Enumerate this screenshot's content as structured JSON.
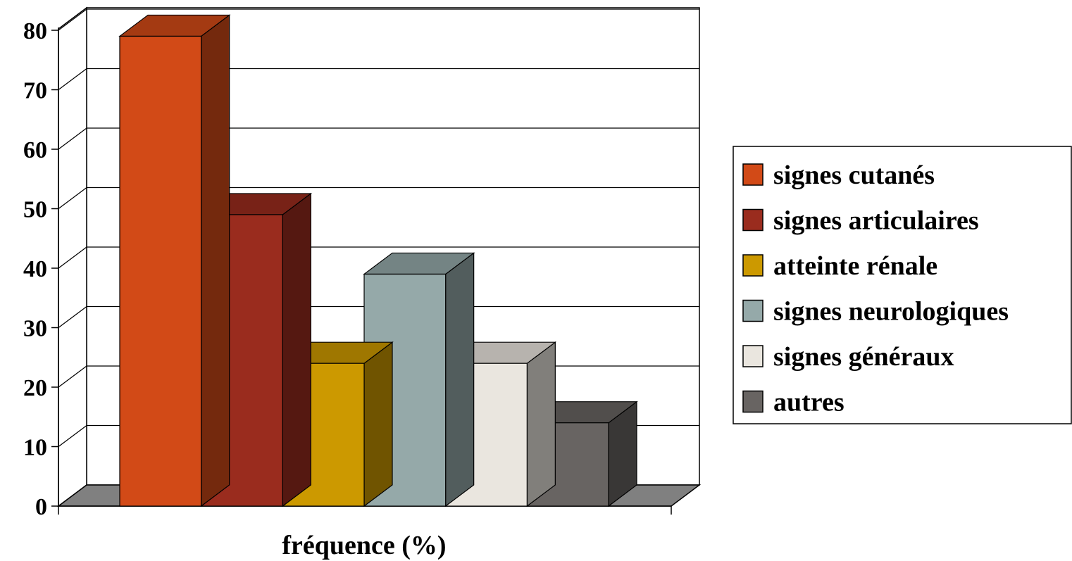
{
  "chart_data": {
    "type": "bar",
    "style": "3d-clustered",
    "title": "",
    "xlabel": "fréquence (%)",
    "ylabel": "",
    "ylim": [
      0,
      80
    ],
    "yticks": [
      0,
      10,
      20,
      30,
      40,
      50,
      60,
      70,
      80
    ],
    "grid": true,
    "legend_position": "right",
    "categories": [
      "fréquence (%)"
    ],
    "series": [
      {
        "name": "signes cutanés",
        "values": [
          79
        ],
        "color": "#D24A17"
      },
      {
        "name": "signes articulaires",
        "values": [
          49
        ],
        "color": "#9A2C1E"
      },
      {
        "name": "atteinte rénale",
        "values": [
          24
        ],
        "color": "#CC9900"
      },
      {
        "name": "signes neurologiques",
        "values": [
          39
        ],
        "color": "#95A9A9"
      },
      {
        "name": "signes généraux",
        "values": [
          24
        ],
        "color": "#EAE6DF"
      },
      {
        "name": "autres",
        "values": [
          14
        ],
        "color": "#686462"
      }
    ],
    "floor_color": "#808080"
  }
}
